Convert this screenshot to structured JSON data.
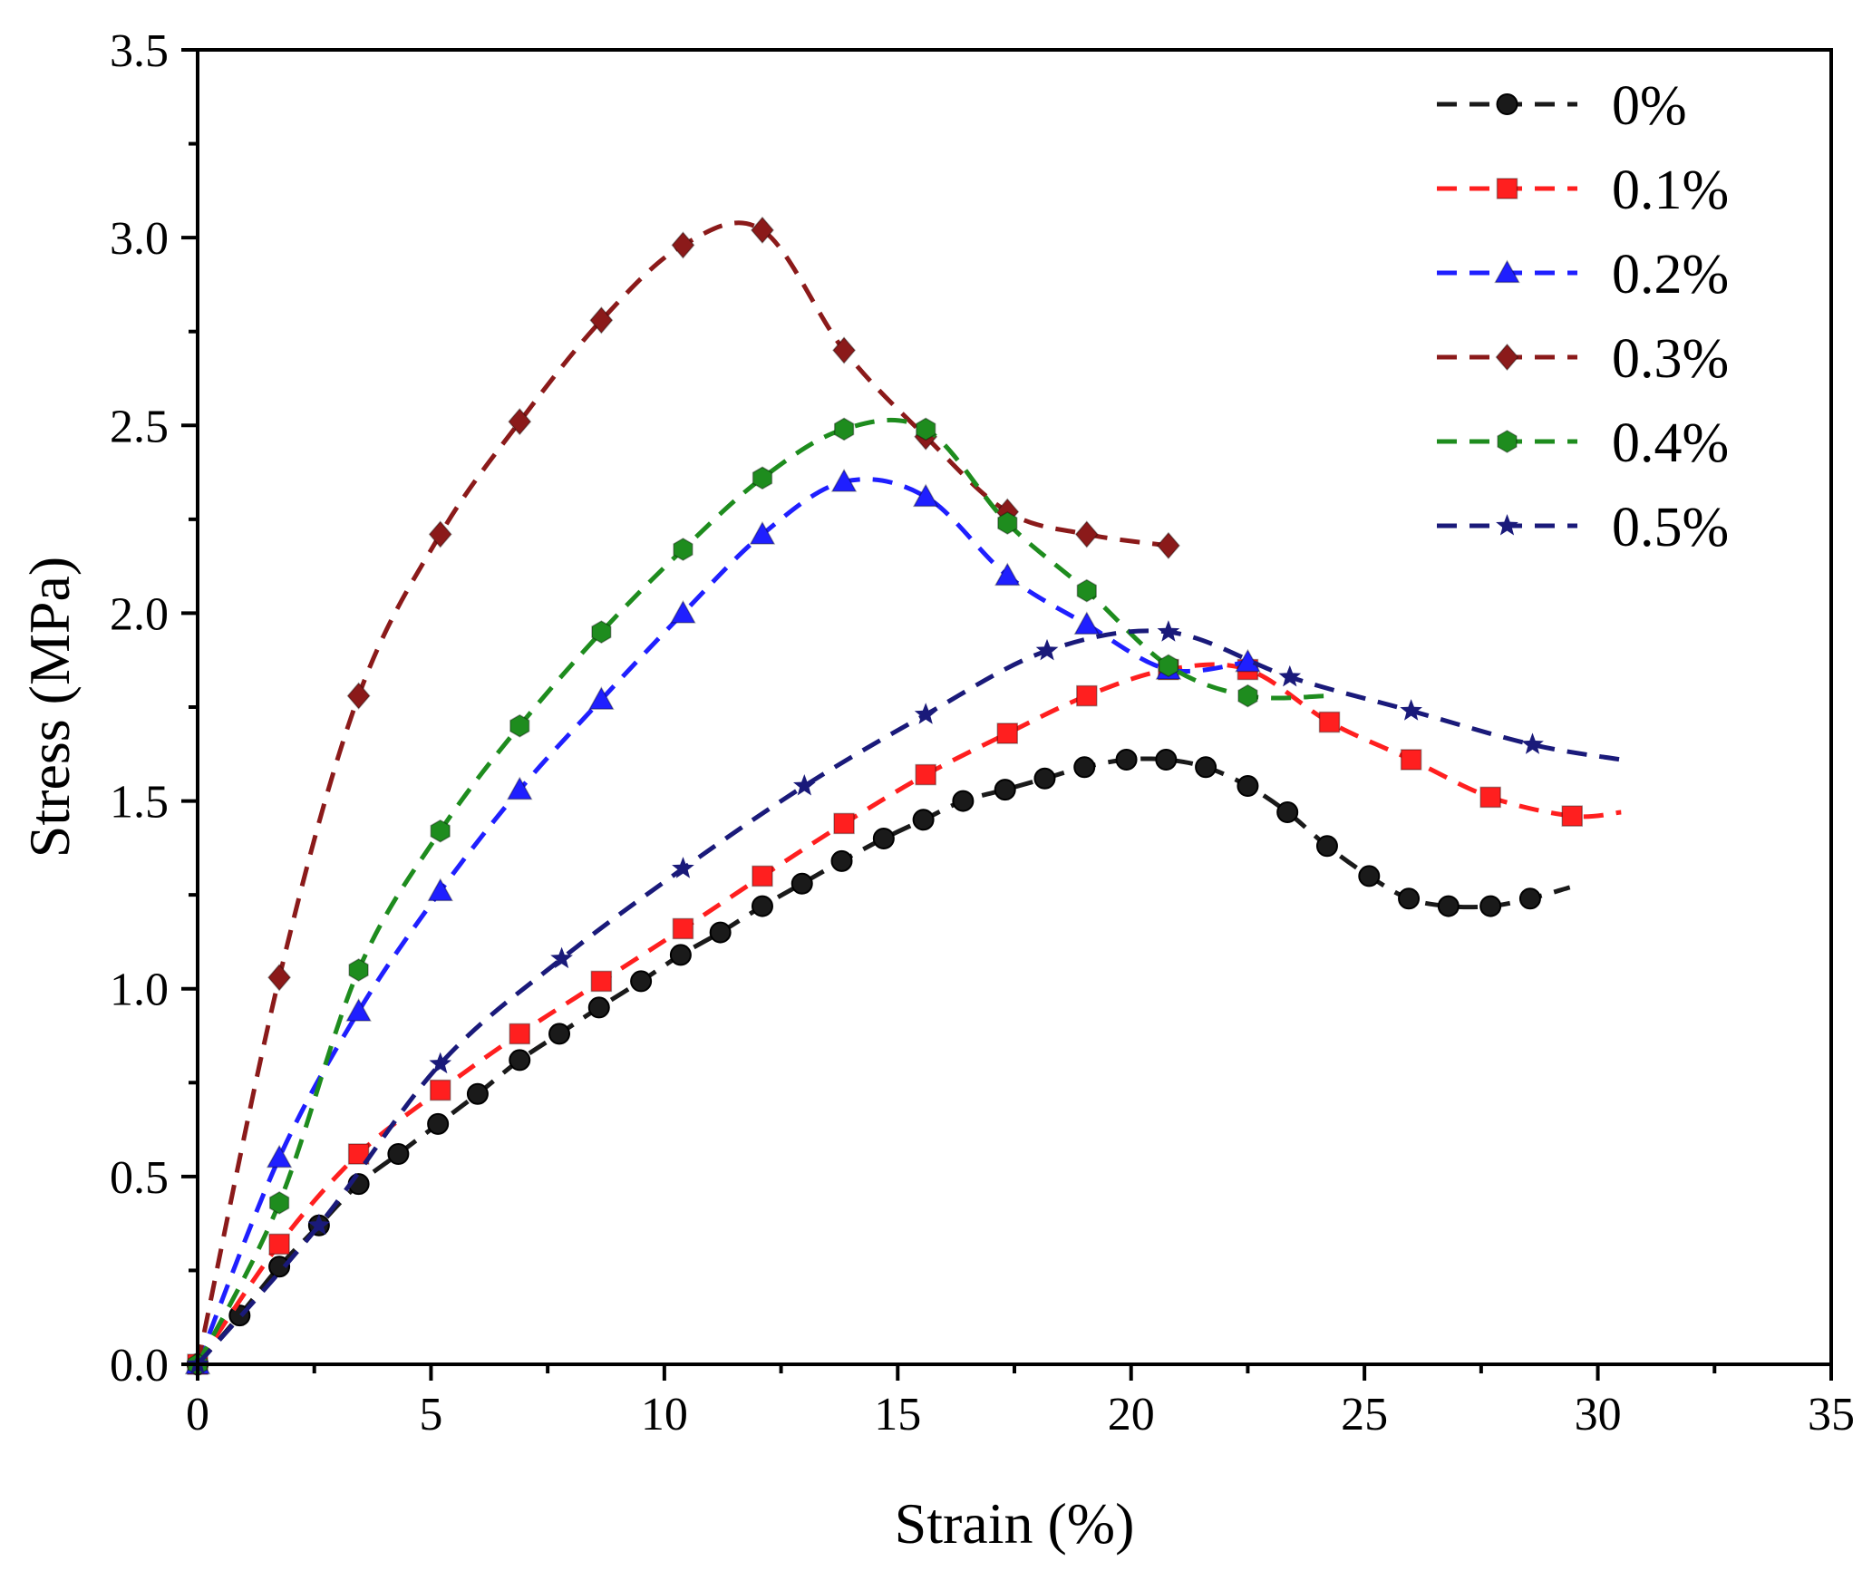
{
  "chart_data": {
    "type": "line",
    "title": "",
    "xlabel": "Strain (%)",
    "ylabel": "Stress (MPa)",
    "xlim": [
      0,
      35
    ],
    "ylim": [
      0,
      3.5
    ],
    "x_ticks": [
      "0",
      "5",
      "10",
      "15",
      "20",
      "25",
      "30",
      "35"
    ],
    "y_ticks": [
      "0.0",
      "0.5",
      "1.0",
      "1.5",
      "2.0",
      "2.5",
      "3.0",
      "3.5"
    ],
    "grid": false,
    "legend_position": "top-right",
    "series": [
      {
        "name": "0%",
        "color": "#1a1a1a",
        "marker": "circle",
        "x": [
          0,
          0.9,
          1.75,
          2.6,
          3.45,
          4.3,
          5.15,
          6.0,
          6.9,
          7.75,
          8.6,
          9.5,
          10.35,
          11.2,
          12.1,
          12.95,
          13.8,
          14.7,
          15.55,
          16.4,
          17.3,
          18.15,
          19.0,
          19.9,
          20.75,
          21.6,
          22.5,
          23.35,
          24.2,
          25.1,
          25.95,
          26.8,
          27.7,
          28.55
        ],
        "y": [
          0,
          0.13,
          0.26,
          0.37,
          0.48,
          0.56,
          0.64,
          0.72,
          0.81,
          0.88,
          0.95,
          1.02,
          1.09,
          1.15,
          1.22,
          1.28,
          1.34,
          1.4,
          1.45,
          1.5,
          1.53,
          1.56,
          1.59,
          1.61,
          1.61,
          1.59,
          1.54,
          1.47,
          1.38,
          1.3,
          1.24,
          1.22,
          1.22,
          1.24
        ],
        "line_end": [
          29.4,
          1.27
        ]
      },
      {
        "name": "0.1%",
        "color": "#ff1f1f",
        "marker": "square",
        "x": [
          0,
          1.75,
          3.45,
          5.2,
          6.9,
          8.65,
          10.4,
          12.1,
          13.85,
          15.6,
          17.35,
          19.05,
          20.8,
          22.5,
          24.25,
          26.0,
          27.7,
          29.45
        ],
        "y": [
          0,
          0.32,
          0.56,
          0.73,
          0.88,
          1.02,
          1.16,
          1.3,
          1.44,
          1.57,
          1.68,
          1.78,
          1.85,
          1.85,
          1.71,
          1.61,
          1.51,
          1.46
        ],
        "line_end": [
          30.5,
          1.47
        ]
      },
      {
        "name": "0.2%",
        "color": "#1f1fff",
        "marker": "triangle",
        "x": [
          0,
          1.75,
          3.45,
          5.2,
          6.9,
          8.65,
          10.4,
          12.1,
          13.85,
          15.6,
          17.35,
          19.05,
          20.8,
          22.5
        ],
        "y": [
          0,
          0.55,
          0.94,
          1.26,
          1.53,
          1.77,
          2.0,
          2.21,
          2.35,
          2.31,
          2.1,
          1.97,
          1.85,
          1.87
        ],
        "line_end": null
      },
      {
        "name": "0.3%",
        "color": "#8b1a1a",
        "marker": "diamond",
        "x": [
          0,
          1.75,
          3.45,
          5.2,
          6.9,
          8.65,
          10.4,
          12.1,
          13.85,
          15.6,
          17.35,
          19.05,
          20.8
        ],
        "y": [
          0,
          1.03,
          1.78,
          2.21,
          2.51,
          2.78,
          2.98,
          3.02,
          2.7,
          2.47,
          2.27,
          2.21,
          2.18
        ],
        "line_end": null
      },
      {
        "name": "0.4%",
        "color": "#1e8c1e",
        "marker": "hexagon",
        "x": [
          0,
          1.75,
          3.45,
          5.2,
          6.9,
          8.65,
          10.4,
          12.1,
          13.85,
          15.6,
          17.35,
          19.05,
          20.8,
          22.5
        ],
        "y": [
          0,
          0.43,
          1.05,
          1.42,
          1.7,
          1.95,
          2.17,
          2.36,
          2.49,
          2.49,
          2.24,
          2.06,
          1.86,
          1.78
        ],
        "line_end": [
          24.2,
          1.78
        ]
      },
      {
        "name": "0.5%",
        "color": "#1a1a7a",
        "marker": "star",
        "x": [
          0,
          2.6,
          5.2,
          7.8,
          10.4,
          13.0,
          15.6,
          18.2,
          20.8,
          23.4,
          26.0,
          28.6
        ],
        "y": [
          0,
          0.37,
          0.8,
          1.08,
          1.32,
          1.54,
          1.73,
          1.9,
          1.95,
          1.83,
          1.74,
          1.65
        ],
        "line_end": [
          30.5,
          1.61
        ]
      }
    ]
  }
}
